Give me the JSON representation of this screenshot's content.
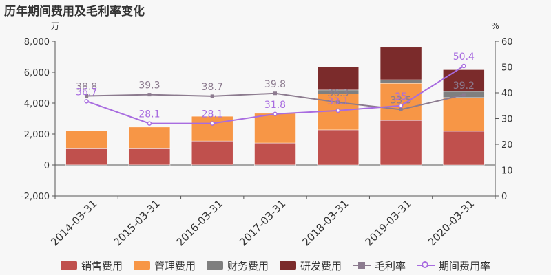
{
  "title": "历年期间费用及毛利率变化",
  "chart_data": {
    "type": "bar",
    "categories": [
      "2014-03-31",
      "2015-03-31",
      "2016-03-31",
      "2017-03-31",
      "2018-03-31",
      "2019-03-31",
      "2020-03-31"
    ],
    "left_axis": {
      "unit": "万",
      "ylim": [
        -2000,
        8000
      ],
      "ticks": [
        "-2,000",
        "0",
        "2,000",
        "4,000",
        "6,000",
        "8,000"
      ]
    },
    "right_axis": {
      "unit": "%",
      "ylim": [
        0,
        60
      ],
      "ticks": [
        "0",
        "10",
        "20",
        "30",
        "40",
        "50",
        "60"
      ]
    },
    "series": [
      {
        "name": "销售费用",
        "kind": "bar",
        "color": "#c0504d",
        "values": [
          1050,
          1050,
          1550,
          1420,
          2270,
          2880,
          2180
        ]
      },
      {
        "name": "管理费用",
        "kind": "bar",
        "color": "#f79646",
        "values": [
          1170,
          1400,
          1600,
          1920,
          2320,
          2400,
          2180
        ]
      },
      {
        "name": "财务费用",
        "kind": "bar",
        "color": "#7f7f7f",
        "values": [
          -20,
          -60,
          -80,
          -20,
          260,
          230,
          400
        ]
      },
      {
        "name": "研发费用",
        "kind": "bar",
        "color": "#7b2b2b",
        "values": [
          0,
          0,
          0,
          0,
          1480,
          2100,
          1400
        ]
      },
      {
        "name": "毛利率",
        "kind": "line",
        "axis": "right",
        "color": "#8c7b8f",
        "marker": "square",
        "values": [
          38.8,
          39.3,
          38.7,
          39.8,
          36.3,
          33.5,
          39.2
        ]
      },
      {
        "name": "期间费用率",
        "kind": "line",
        "axis": "right",
        "color": "#a86ce0",
        "marker": "circle",
        "values": [
          36.7,
          28.1,
          28.1,
          31.8,
          33.1,
          35,
          50.4
        ]
      }
    ],
    "grid": false,
    "legend_position": "bottom"
  }
}
